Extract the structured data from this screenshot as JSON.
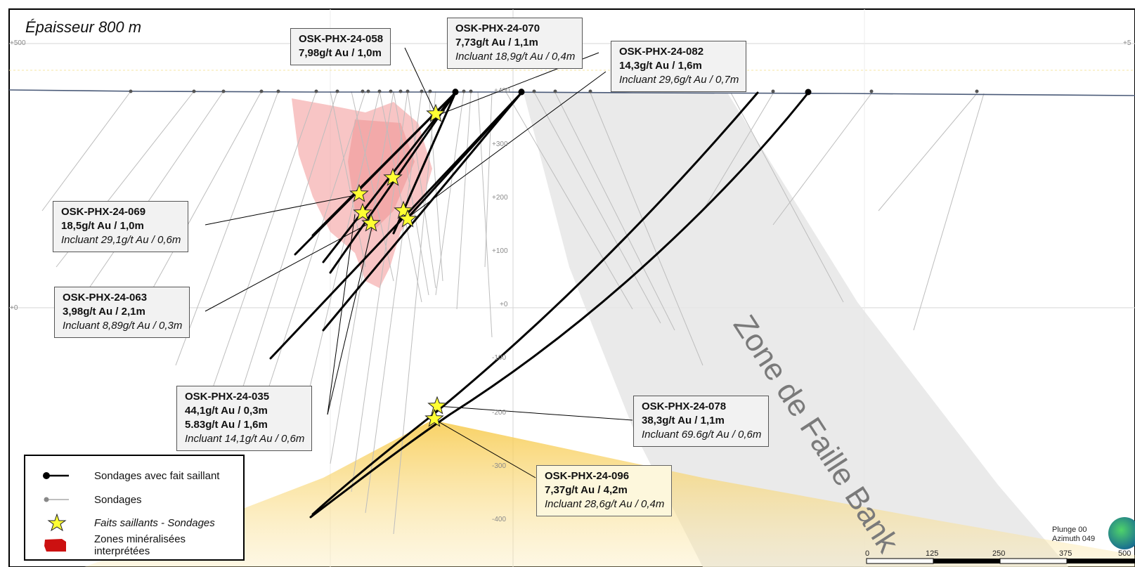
{
  "section": {
    "title": "Épaisseur 800 m",
    "fault_zone_label": "Zone de Faille Bank",
    "elevation_ticks": [
      "+500",
      "+400",
      "+300",
      "+200",
      "+100",
      "+0",
      "-100",
      "-200",
      "-300",
      "-400"
    ],
    "edge_ticks": [
      "+500",
      "+0",
      "+5"
    ]
  },
  "callouts": [
    {
      "hole": "OSK-PHX-24-058",
      "lines": [
        "7,98g/t Au / 1,0m"
      ],
      "including": ""
    },
    {
      "hole": "OSK-PHX-24-070",
      "lines": [
        "7,73g/t Au / 1,1m"
      ],
      "including": "Incluant 18,9g/t Au / 0,4m"
    },
    {
      "hole": "OSK-PHX-24-082",
      "lines": [
        "14,3g/t Au / 1,6m"
      ],
      "including": "Incluant 29,6g/t Au / 0,7m"
    },
    {
      "hole": "OSK-PHX-24-069",
      "lines": [
        "18,5g/t Au / 1,0m"
      ],
      "including": "Incluant 29,1g/t Au / 0,6m"
    },
    {
      "hole": "OSK-PHX-24-063",
      "lines": [
        "3,98g/t Au / 2,1m"
      ],
      "including": "Incluant 8,89g/t Au / 0,3m"
    },
    {
      "hole": "OSK-PHX-24-035",
      "lines": [
        "44,1g/t Au / 0,3m",
        "5.83g/t Au / 1,6m"
      ],
      "including": "Incluant 14,1g/t Au / 0,6m"
    },
    {
      "hole": "OSK-PHX-24-078",
      "lines": [
        "38,3g/t Au / 1,1m"
      ],
      "including": "Incluant 69.6g/t Au / 0,6m"
    },
    {
      "hole": "OSK-PHX-24-096",
      "lines": [
        "7,37g/t Au / 4,2m"
      ],
      "including": "Incluant 28,6g/t Au / 0,4m"
    }
  ],
  "legend": {
    "items": [
      {
        "label": "Sondages avec fait saillant",
        "icon": "highlight-drillhole-icon"
      },
      {
        "label": "Sondages",
        "icon": "drillhole-icon"
      },
      {
        "label": "Faits saillants - Sondages",
        "icon": "star-icon"
      },
      {
        "label": "Zones minéralisées interprétées",
        "icon": "mineralized-zone-icon"
      }
    ]
  },
  "orientation": {
    "plunge": "Plunge 00",
    "azimuth": "Azimuth 049"
  },
  "scale_bar": {
    "labels": [
      "0",
      "125",
      "250",
      "375",
      "500"
    ]
  },
  "colors": {
    "mineralized_zone": "#f4a6a6",
    "yellow_zone": "#f7d774",
    "fault_zone": "#e6e6e6",
    "star": "#ffff33",
    "topography": "#4a5a78"
  }
}
